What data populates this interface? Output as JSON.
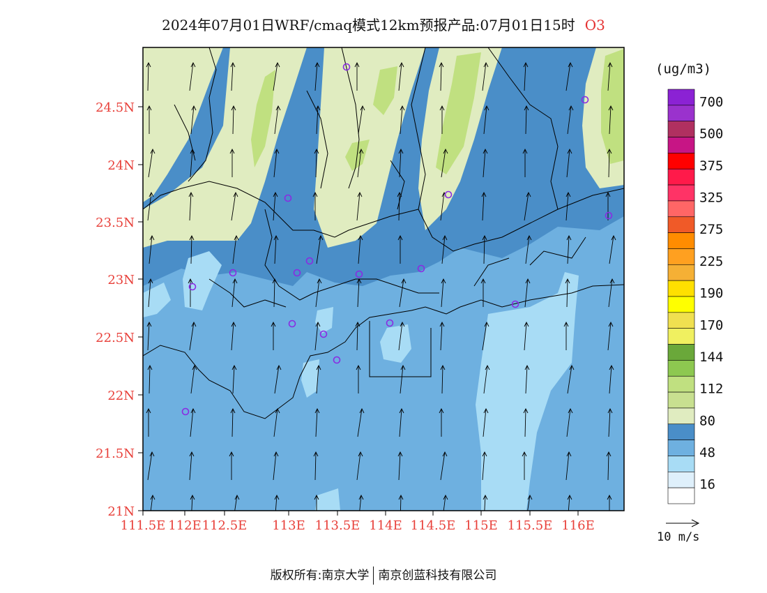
{
  "title": {
    "text": "2024年07月01日WRF/cmaq模式12km预报产品:07月01日15时",
    "species": "O3"
  },
  "map": {
    "lat_labels": [
      "24.5N",
      "24N",
      "23.5N",
      "23N",
      "22.5N",
      "22N",
      "21.5N",
      "21N"
    ],
    "lon_labels": [
      "111.5E",
      "112E",
      "112.5E",
      "113E",
      "113.5E",
      "114E",
      "114.5E",
      "115E",
      "115.5E",
      "116E"
    ],
    "label_color": "#e8403a",
    "stations_color": "#8a2be2"
  },
  "legend": {
    "unit": "(ug/m3)",
    "bins": [
      {
        "color": "#8b22d4",
        "label": "700"
      },
      {
        "color": "#9a32cd",
        "label": ""
      },
      {
        "color": "#b03060",
        "label": "500"
      },
      {
        "color": "#c71585",
        "label": ""
      },
      {
        "color": "#ff0000",
        "label": "375"
      },
      {
        "color": "#ff1a4a",
        "label": ""
      },
      {
        "color": "#ff3366",
        "label": "325"
      },
      {
        "color": "#ff6666",
        "label": ""
      },
      {
        "color": "#f05a28",
        "label": "275"
      },
      {
        "color": "#ff8c00",
        "label": ""
      },
      {
        "color": "#ffa020",
        "label": "225"
      },
      {
        "color": "#f5b035",
        "label": ""
      },
      {
        "color": "#ffe000",
        "label": "190"
      },
      {
        "color": "#ffff00",
        "label": ""
      },
      {
        "color": "#f0e050",
        "label": "170"
      },
      {
        "color": "#f0f060",
        "label": ""
      },
      {
        "color": "#6aa83a",
        "label": "144"
      },
      {
        "color": "#8dc850",
        "label": ""
      },
      {
        "color": "#c0e080",
        "label": "112"
      },
      {
        "color": "#c8e090",
        "label": ""
      },
      {
        "color": "#e0ecc0",
        "label": "80"
      },
      {
        "color": "#4a8ec8",
        "label": ""
      },
      {
        "color": "#6eb0e0",
        "label": "48"
      },
      {
        "color": "#a8dcf5",
        "label": ""
      },
      {
        "color": "#dff0fb",
        "label": "16"
      },
      {
        "color": "#ffffff",
        "label": ""
      }
    ],
    "wind_ref": "10 m/s"
  },
  "footer": {
    "left": "版权所有:南京大学",
    "right": "南京创蓝科技有限公司"
  },
  "colors": {
    "c1": "#4a8ec8",
    "c2": "#6eb0e0",
    "c3": "#a8dcf5",
    "c4": "#e0ecc0",
    "c5": "#c0e080"
  }
}
